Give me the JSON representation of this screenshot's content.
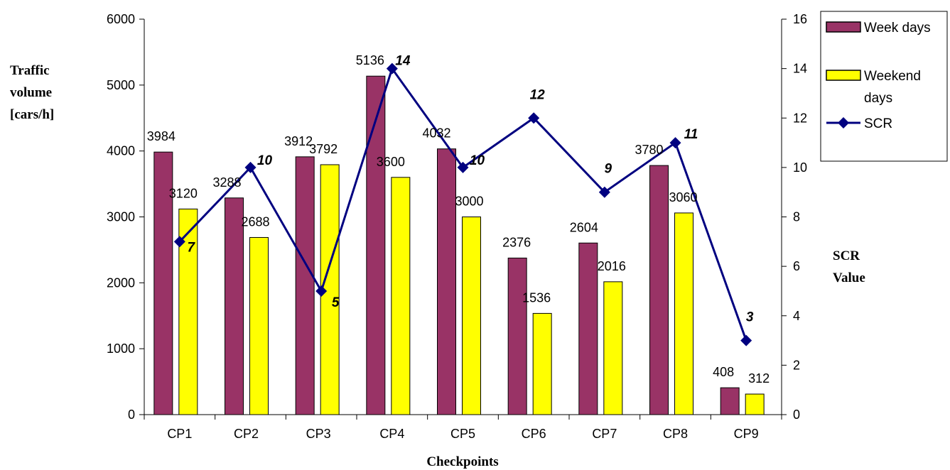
{
  "chart_data": {
    "type": "bar",
    "categories": [
      "CP1",
      "CP2",
      "CP3",
      "CP4",
      "CP5",
      "CP6",
      "CP7",
      "CP8",
      "CP9"
    ],
    "series": [
      {
        "name": "Week days",
        "type": "bar",
        "axis": "left",
        "color": "#993366",
        "values": [
          3984,
          3288,
          3912,
          5136,
          4032,
          2376,
          2604,
          3780,
          408
        ]
      },
      {
        "name": "Weekend days",
        "type": "bar",
        "axis": "left",
        "color": "#FFFF00",
        "values": [
          3120,
          2688,
          3792,
          3600,
          3000,
          1536,
          2016,
          3060,
          312
        ]
      },
      {
        "name": "SCR",
        "type": "line",
        "axis": "right",
        "color": "#000080",
        "marker": "diamond",
        "values": [
          7,
          10,
          5,
          14,
          10,
          12,
          9,
          11,
          3
        ]
      }
    ],
    "xlabel": "Checkpoints",
    "ylabel_lines": [
      "Traffic",
      "volume",
      "[cars/h]"
    ],
    "y2label_lines": [
      "SCR",
      "Value"
    ],
    "ylim": [
      0,
      6000
    ],
    "yticks": [
      0,
      1000,
      2000,
      3000,
      4000,
      5000,
      6000
    ],
    "y2lim": [
      0,
      16
    ],
    "y2ticks": [
      0,
      2,
      4,
      6,
      8,
      10,
      12,
      14,
      16
    ],
    "grid": false,
    "legend_position": "top-right",
    "legend_entries": [
      {
        "lines": [
          "Week days"
        ],
        "kind": "box",
        "color": "#993366"
      },
      {
        "lines": [
          "Weekend",
          "days"
        ],
        "kind": "box",
        "color": "#FFFF00"
      },
      {
        "lines": [
          "SCR"
        ],
        "kind": "line",
        "color": "#000080"
      }
    ]
  }
}
